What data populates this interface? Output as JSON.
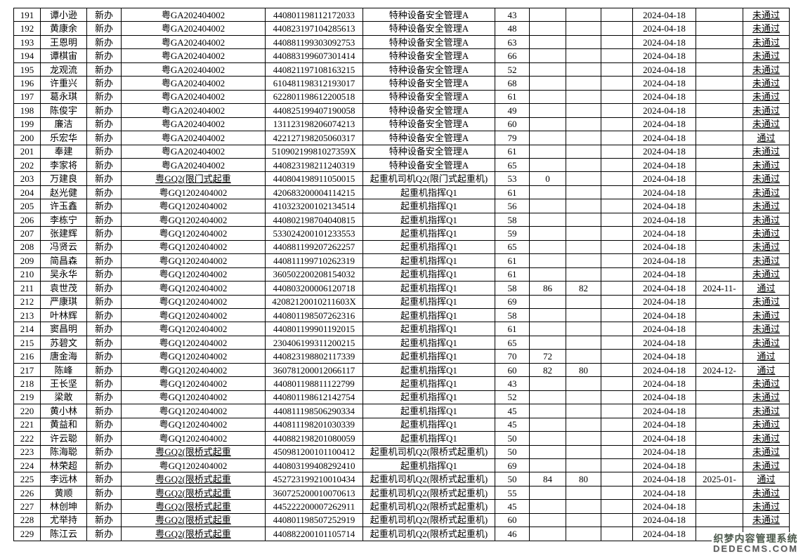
{
  "colors": {
    "table_border": "#000000",
    "text": "#000000",
    "background": "#ffffff",
    "watermark_text": "#4f5a4f"
  },
  "watermark": {
    "line1": "织梦内容管理系统",
    "line2": "DEDECMS.COM"
  },
  "table": {
    "rows": [
      {
        "seq": "191",
        "name": "谭小逊",
        "type": "新办",
        "batch": "粤GA202404002",
        "id": "440801198112172033",
        "category": "特种设备安全管理A",
        "s1": "43",
        "s2": "",
        "s3": "",
        "s4": "",
        "date1": "2024-04-18",
        "date2": "",
        "result": "未通过"
      },
      {
        "seq": "192",
        "name": "黄康余",
        "type": "新办",
        "batch": "粤GA202404002",
        "id": "440823197104285613",
        "category": "特种设备安全管理A",
        "s1": "48",
        "s2": "",
        "s3": "",
        "s4": "",
        "date1": "2024-04-18",
        "date2": "",
        "result": "未通过"
      },
      {
        "seq": "193",
        "name": "王恩明",
        "type": "新办",
        "batch": "粤GA202404002",
        "id": "440881199303092753",
        "category": "特种设备安全管理A",
        "s1": "63",
        "s2": "",
        "s3": "",
        "s4": "",
        "date1": "2024-04-18",
        "date2": "",
        "result": "未通过"
      },
      {
        "seq": "194",
        "name": "谭棋宙",
        "type": "新办",
        "batch": "粤GA202404002",
        "id": "440883199607301414",
        "category": "特种设备安全管理A",
        "s1": "66",
        "s2": "",
        "s3": "",
        "s4": "",
        "date1": "2024-04-18",
        "date2": "",
        "result": "未通过"
      },
      {
        "seq": "195",
        "name": "龙观流",
        "type": "新办",
        "batch": "粤GA202404002",
        "id": "440821197108163215",
        "category": "特种设备安全管理A",
        "s1": "52",
        "s2": "",
        "s3": "",
        "s4": "",
        "date1": "2024-04-18",
        "date2": "",
        "result": "未通过"
      },
      {
        "seq": "196",
        "name": "许重兴",
        "type": "新办",
        "batch": "粤GA202404002",
        "id": "610481198312193017",
        "category": "特种设备安全管理A",
        "s1": "68",
        "s2": "",
        "s3": "",
        "s4": "",
        "date1": "2024-04-18",
        "date2": "",
        "result": "未通过"
      },
      {
        "seq": "197",
        "name": "葛永琪",
        "type": "新办",
        "batch": "粤GA202404002",
        "id": "622801198612200518",
        "category": "特种设备安全管理A",
        "s1": "61",
        "s2": "",
        "s3": "",
        "s4": "",
        "date1": "2024-04-18",
        "date2": "",
        "result": "未通过"
      },
      {
        "seq": "198",
        "name": "陈俊宇",
        "type": "新办",
        "batch": "粤GA202404002",
        "id": "440825199407190058",
        "category": "特种设备安全管理A",
        "s1": "49",
        "s2": "",
        "s3": "",
        "s4": "",
        "date1": "2024-04-18",
        "date2": "",
        "result": "未通过"
      },
      {
        "seq": "199",
        "name": "廉洁",
        "type": "新办",
        "batch": "粤GA202404002",
        "id": "131123198206074213",
        "category": "特种设备安全管理A",
        "s1": "60",
        "s2": "",
        "s3": "",
        "s4": "",
        "date1": "2024-04-18",
        "date2": "",
        "result": "未通过"
      },
      {
        "seq": "200",
        "name": "乐宏华",
        "type": "新办",
        "batch": "粤GA202404002",
        "id": "422127198205060317",
        "category": "特种设备安全管理A",
        "s1": "79",
        "s2": "",
        "s3": "",
        "s4": "",
        "date1": "2024-04-18",
        "date2": "",
        "result": "通过"
      },
      {
        "seq": "201",
        "name": "奉建",
        "type": "新办",
        "batch": "粤GA202404002",
        "id": "51090219981027359X",
        "category": "特种设备安全管理A",
        "s1": "61",
        "s2": "",
        "s3": "",
        "s4": "",
        "date1": "2024-04-18",
        "date2": "",
        "result": "未通过"
      },
      {
        "seq": "202",
        "name": "李家将",
        "type": "新办",
        "batch": "粤GA202404002",
        "id": "440823198211240319",
        "category": "特种设备安全管理A",
        "s1": "65",
        "s2": "",
        "s3": "",
        "s4": "",
        "date1": "2024-04-18",
        "date2": "",
        "result": "未通过"
      },
      {
        "seq": "203",
        "name": "万建良",
        "type": "新办",
        "batch": "粤GQ2(限门式起重",
        "id": "440804198911050015",
        "category": "起重机司机Q2(限门式起重机)",
        "s1": "53",
        "s2": "0",
        "s3": "",
        "s4": "",
        "date1": "2024-04-18",
        "date2": "",
        "result": "未通过"
      },
      {
        "seq": "204",
        "name": "赵光健",
        "type": "新办",
        "batch": "粤GQ1202404002",
        "id": "420683200004114215",
        "category": "起重机指挥Q1",
        "s1": "61",
        "s2": "",
        "s3": "",
        "s4": "",
        "date1": "2024-04-18",
        "date2": "",
        "result": "未通过"
      },
      {
        "seq": "205",
        "name": "许玉鑫",
        "type": "新办",
        "batch": "粤GQ1202404002",
        "id": "410323200102134514",
        "category": "起重机指挥Q1",
        "s1": "56",
        "s2": "",
        "s3": "",
        "s4": "",
        "date1": "2024-04-18",
        "date2": "",
        "result": "未通过"
      },
      {
        "seq": "206",
        "name": "李栋宁",
        "type": "新办",
        "batch": "粤GQ1202404002",
        "id": "440802198704040815",
        "category": "起重机指挥Q1",
        "s1": "58",
        "s2": "",
        "s3": "",
        "s4": "",
        "date1": "2024-04-18",
        "date2": "",
        "result": "未通过"
      },
      {
        "seq": "207",
        "name": "张建辉",
        "type": "新办",
        "batch": "粤GQ1202404002",
        "id": "533024200101233553",
        "category": "起重机指挥Q1",
        "s1": "59",
        "s2": "",
        "s3": "",
        "s4": "",
        "date1": "2024-04-18",
        "date2": "",
        "result": "未通过"
      },
      {
        "seq": "208",
        "name": "冯贤云",
        "type": "新办",
        "batch": "粤GQ1202404002",
        "id": "440881199207262257",
        "category": "起重机指挥Q1",
        "s1": "65",
        "s2": "",
        "s3": "",
        "s4": "",
        "date1": "2024-04-18",
        "date2": "",
        "result": "未通过"
      },
      {
        "seq": "209",
        "name": "简昌森",
        "type": "新办",
        "batch": "粤GQ1202404002",
        "id": "440811199710262319",
        "category": "起重机指挥Q1",
        "s1": "61",
        "s2": "",
        "s3": "",
        "s4": "",
        "date1": "2024-04-18",
        "date2": "",
        "result": "未通过"
      },
      {
        "seq": "210",
        "name": "吴永华",
        "type": "新办",
        "batch": "粤GQ1202404002",
        "id": "360502200208154032",
        "category": "起重机指挥Q1",
        "s1": "61",
        "s2": "",
        "s3": "",
        "s4": "",
        "date1": "2024-04-18",
        "date2": "",
        "result": "未通过"
      },
      {
        "seq": "211",
        "name": "袁世茂",
        "type": "新办",
        "batch": "粤GQ1202404002",
        "id": "440803200006120718",
        "category": "起重机指挥Q1",
        "s1": "58",
        "s2": "86",
        "s3": "82",
        "s4": "",
        "date1": "2024-04-18",
        "date2": "2024-11-",
        "result": "通过"
      },
      {
        "seq": "212",
        "name": "严康琪",
        "type": "新办",
        "batch": "粤GQ1202404002",
        "id": "42082120010211603X",
        "category": "起重机指挥Q1",
        "s1": "69",
        "s2": "",
        "s3": "",
        "s4": "",
        "date1": "2024-04-18",
        "date2": "",
        "result": "未通过"
      },
      {
        "seq": "213",
        "name": "叶林辉",
        "type": "新办",
        "batch": "粤GQ1202404002",
        "id": "440801198507262316",
        "category": "起重机指挥Q1",
        "s1": "58",
        "s2": "",
        "s3": "",
        "s4": "",
        "date1": "2024-04-18",
        "date2": "",
        "result": "未通过"
      },
      {
        "seq": "214",
        "name": "窦昌明",
        "type": "新办",
        "batch": "粤GQ1202404002",
        "id": "440801199901192015",
        "category": "起重机指挥Q1",
        "s1": "61",
        "s2": "",
        "s3": "",
        "s4": "",
        "date1": "2024-04-18",
        "date2": "",
        "result": "未通过"
      },
      {
        "seq": "215",
        "name": "苏碧文",
        "type": "新办",
        "batch": "粤GQ1202404002",
        "id": "230406199311200215",
        "category": "起重机指挥Q1",
        "s1": "65",
        "s2": "",
        "s3": "",
        "s4": "",
        "date1": "2024-04-18",
        "date2": "",
        "result": "未通过"
      },
      {
        "seq": "216",
        "name": "唐金海",
        "type": "新办",
        "batch": "粤GQ1202404002",
        "id": "440823198802117339",
        "category": "起重机指挥Q1",
        "s1": "70",
        "s2": "72",
        "s3": "",
        "s4": "",
        "date1": "2024-04-18",
        "date2": "",
        "result": "通过"
      },
      {
        "seq": "217",
        "name": "陈峰",
        "type": "新办",
        "batch": "粤GQ1202404002",
        "id": "360781200012066117",
        "category": "起重机指挥Q1",
        "s1": "60",
        "s2": "82",
        "s3": "80",
        "s4": "",
        "date1": "2024-04-18",
        "date2": "2024-12-",
        "result": "通过"
      },
      {
        "seq": "218",
        "name": "王长坚",
        "type": "新办",
        "batch": "粤GQ1202404002",
        "id": "440801198811122799",
        "category": "起重机指挥Q1",
        "s1": "43",
        "s2": "",
        "s3": "",
        "s4": "",
        "date1": "2024-04-18",
        "date2": "",
        "result": "未通过"
      },
      {
        "seq": "219",
        "name": "梁敢",
        "type": "新办",
        "batch": "粤GQ1202404002",
        "id": "440801198612142754",
        "category": "起重机指挥Q1",
        "s1": "52",
        "s2": "",
        "s3": "",
        "s4": "",
        "date1": "2024-04-18",
        "date2": "",
        "result": "未通过"
      },
      {
        "seq": "220",
        "name": "黄小林",
        "type": "新办",
        "batch": "粤GQ1202404002",
        "id": "440811198506290334",
        "category": "起重机指挥Q1",
        "s1": "45",
        "s2": "",
        "s3": "",
        "s4": "",
        "date1": "2024-04-18",
        "date2": "",
        "result": "未通过"
      },
      {
        "seq": "221",
        "name": "黄益和",
        "type": "新办",
        "batch": "粤GQ1202404002",
        "id": "440811198201030339",
        "category": "起重机指挥Q1",
        "s1": "45",
        "s2": "",
        "s3": "",
        "s4": "",
        "date1": "2024-04-18",
        "date2": "",
        "result": "未通过"
      },
      {
        "seq": "222",
        "name": "许云聪",
        "type": "新办",
        "batch": "粤GQ1202404002",
        "id": "440882198201080059",
        "category": "起重机指挥Q1",
        "s1": "50",
        "s2": "",
        "s3": "",
        "s4": "",
        "date1": "2024-04-18",
        "date2": "",
        "result": "未通过"
      },
      {
        "seq": "223",
        "name": "陈海聪",
        "type": "新办",
        "batch": "粤GQ2(限桥式起重",
        "id": "450981200101100412",
        "category": "起重机司机Q2(限桥式起重机)",
        "s1": "50",
        "s2": "",
        "s3": "",
        "s4": "",
        "date1": "2024-04-18",
        "date2": "",
        "result": "未通过"
      },
      {
        "seq": "224",
        "name": "林荣超",
        "type": "新办",
        "batch": "粤GQ1202404002",
        "id": "440803199408292410",
        "category": "起重机指挥Q1",
        "s1": "69",
        "s2": "",
        "s3": "",
        "s4": "",
        "date1": "2024-04-18",
        "date2": "",
        "result": "未通过"
      },
      {
        "seq": "225",
        "name": "李远林",
        "type": "新办",
        "batch": "粤GQ2(限桥式起重",
        "id": "452723199210010434",
        "category": "起重机司机Q2(限桥式起重机)",
        "s1": "50",
        "s2": "84",
        "s3": "80",
        "s4": "",
        "date1": "2024-04-18",
        "date2": "2025-01-",
        "result": "通过"
      },
      {
        "seq": "226",
        "name": "黄顺",
        "type": "新办",
        "batch": "粤GQ2(限桥式起重",
        "id": "360725200010070613",
        "category": "起重机司机Q2(限桥式起重机)",
        "s1": "55",
        "s2": "",
        "s3": "",
        "s4": "",
        "date1": "2024-04-18",
        "date2": "",
        "result": "未通过"
      },
      {
        "seq": "227",
        "name": "林创坤",
        "type": "新办",
        "batch": "粤GQ2(限桥式起重",
        "id": "445222200007262911",
        "category": "起重机司机Q2(限桥式起重机)",
        "s1": "45",
        "s2": "",
        "s3": "",
        "s4": "",
        "date1": "2024-04-18",
        "date2": "",
        "result": "未通过"
      },
      {
        "seq": "228",
        "name": "尤举持",
        "type": "新办",
        "batch": "粤GQ2(限桥式起重",
        "id": "440801198507252919",
        "category": "起重机司机Q2(限桥式起重机)",
        "s1": "60",
        "s2": "",
        "s3": "",
        "s4": "",
        "date1": "2024-04-18",
        "date2": "",
        "result": "未通过"
      },
      {
        "seq": "229",
        "name": "陈江云",
        "type": "新办",
        "batch": "粤GQ2(限桥式起重",
        "id": "440882200101105714",
        "category": "起重机司机Q2(限桥式起重机)",
        "s1": "46",
        "s2": "",
        "s3": "",
        "s4": "",
        "date1": "2024-04-18",
        "date2": "",
        "result": ""
      }
    ]
  }
}
